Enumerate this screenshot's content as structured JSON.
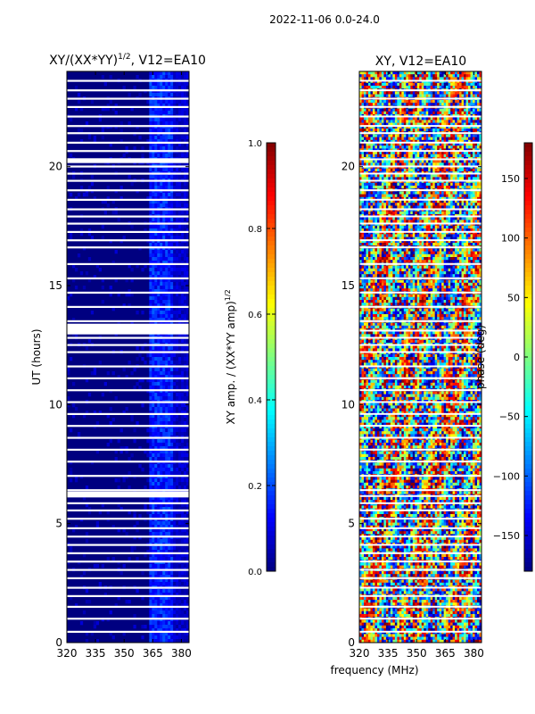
{
  "figure": {
    "suptitle": "2022-11-06 0.0-24.0",
    "xlabel": "frequency (MHz)"
  },
  "chart_data": [
    {
      "type": "heatmap",
      "title_main": "XY/(XX*YY)",
      "title_sup": "1/2",
      "title_suffix": ", V12=EA10",
      "ylabel": "UT (hours)",
      "xlim": [
        320,
        384
      ],
      "ylim": [
        0,
        24
      ],
      "xticks": [
        320,
        335,
        350,
        365,
        380
      ],
      "yticks": [
        0,
        5,
        10,
        15,
        20
      ],
      "colorbar": {
        "label_main": "XY amp. / (XX*YY amp)",
        "label_sup": "1/2",
        "range": [
          0.0,
          1.0
        ],
        "ticks": [
          "0.0",
          "0.2",
          "0.4",
          "0.6",
          "0.8",
          "1.0"
        ],
        "colormap": "jet"
      },
      "gap_rows_hours": [
        0.45,
        1.0,
        1.5,
        1.95,
        2.3,
        2.7,
        3.05,
        3.4,
        3.75,
        4.1,
        4.45,
        4.8,
        5.2,
        5.55,
        5.85,
        6.15,
        6.4,
        7.0,
        7.6,
        8.1,
        8.6,
        9.1,
        9.6,
        10.1,
        10.6,
        11.1,
        11.6,
        12.2,
        12.5,
        12.8,
        13.1,
        13.5,
        14.1,
        14.7,
        15.3,
        15.9,
        16.6,
        16.9,
        17.25,
        17.6,
        17.9,
        18.2,
        18.6,
        19.0,
        19.4,
        19.7,
        20.0,
        20.3,
        20.65,
        21.0,
        21.4,
        21.7,
        22.1,
        22.5,
        22.85,
        23.2,
        23.6
      ],
      "wide_gaps_hours": [
        [
          12.95,
          13.4
        ],
        [
          20.15,
          20.35
        ],
        [
          6.1,
          6.35
        ]
      ],
      "note": "mostly near 0.0–0.1 (dark blue); slightly higher (~0.15) at 363–375 MHz"
    },
    {
      "type": "heatmap",
      "title": "XY, V12=EA10",
      "xlim": [
        320,
        384
      ],
      "ylim": [
        0,
        24
      ],
      "xticks": [
        320,
        335,
        350,
        365,
        380
      ],
      "yticks": [
        0,
        5,
        10,
        15,
        20
      ],
      "colorbar": {
        "label": "phase (deg)",
        "range": [
          -180,
          180
        ],
        "ticks": [
          "−150",
          "−100",
          "−50",
          "0",
          "50",
          "100",
          "150"
        ],
        "tick_values": [
          -150,
          -100,
          -50,
          0,
          50,
          100,
          150
        ],
        "colormap": "jet"
      },
      "gap_rows_hours": [
        0.45,
        1.0,
        1.5,
        1.95,
        2.3,
        2.7,
        3.05,
        3.4,
        3.75,
        4.1,
        4.45,
        4.8,
        5.2,
        5.55,
        5.85,
        6.15,
        6.4,
        7.0,
        7.6,
        8.1,
        8.6,
        9.1,
        9.6,
        10.1,
        10.6,
        11.1,
        11.6,
        12.2,
        12.5,
        12.8,
        13.1,
        13.5,
        14.1,
        14.7,
        15.3,
        15.9,
        16.6,
        16.9,
        17.25,
        17.6,
        17.9,
        18.2,
        18.6,
        19.0,
        19.4,
        19.7,
        20.0,
        20.3,
        20.65,
        21.0,
        21.4,
        21.7,
        22.1,
        22.5,
        22.85,
        23.2,
        23.6
      ],
      "note": "noisy phase across full range -180..180 deg"
    }
  ]
}
